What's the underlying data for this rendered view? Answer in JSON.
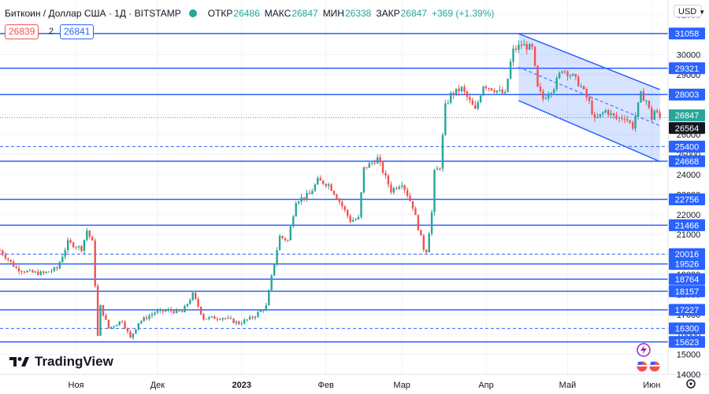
{
  "header": {
    "symbol": "Биткоин / Доллар США · 1Д · BITSTAMP",
    "open_label": "ОТКР",
    "open": "26486",
    "high_label": "МАКС",
    "high": "26847",
    "low_label": "МИН",
    "low": "26338",
    "close_label": "ЗАКР",
    "close": "26847",
    "change": "+369 (+1.39%)"
  },
  "sell_price": "26839",
  "spread": "2",
  "buy_price": "26841",
  "currency": "USD",
  "logo_text": "TradingView",
  "colors": {
    "up": "#26a69a",
    "down": "#ef5350",
    "levels": "#2962ff",
    "channel": "#2962ff"
  },
  "chart_data": {
    "type": "candlestick",
    "ylim": [
      14000,
      32500
    ],
    "y_ticks": [
      14000,
      15000,
      16000,
      17000,
      18000,
      19000,
      20000,
      21000,
      22000,
      23000,
      24000,
      25000,
      26000,
      27000,
      28000,
      29000,
      30000,
      31000,
      32000
    ],
    "x_ticks": [
      {
        "label": "Ноя",
        "date": "2022-11-01"
      },
      {
        "label": "Дек",
        "date": "2022-12-01"
      },
      {
        "label": "2023",
        "date": "2023-01-01"
      },
      {
        "label": "Фев",
        "date": "2023-02-01"
      },
      {
        "label": "Мар",
        "date": "2023-03-01"
      },
      {
        "label": "Апр",
        "date": "2023-04-01"
      },
      {
        "label": "Май",
        "date": "2023-05-01"
      },
      {
        "label": "Июн",
        "date": "2023-06-01"
      }
    ],
    "x_range": [
      "2022-10-04",
      "2023-06-07"
    ],
    "horizontal_levels": [
      {
        "value": 31058,
        "style": "solid"
      },
      {
        "value": 29321,
        "style": "solid"
      },
      {
        "value": 28003,
        "style": "solid"
      },
      {
        "value": 25400,
        "style": "dashed"
      },
      {
        "value": 24668,
        "style": "solid"
      },
      {
        "value": 22756,
        "style": "solid"
      },
      {
        "value": 21466,
        "style": "solid"
      },
      {
        "value": 20016,
        "style": "dashed"
      },
      {
        "value": 19526,
        "style": "solid"
      },
      {
        "value": 18764,
        "style": "solid"
      },
      {
        "value": 18157,
        "style": "solid"
      },
      {
        "value": 17227,
        "style": "solid"
      },
      {
        "value": 16300,
        "style": "dashed"
      },
      {
        "value": 15623,
        "style": "solid"
      }
    ],
    "price_labels": [
      {
        "value": 26847,
        "role": "last"
      },
      {
        "value": 26564,
        "role": "level"
      }
    ],
    "channel": {
      "upper": [
        {
          "date": "2023-04-13",
          "value": 31050
        },
        {
          "date": "2023-06-04",
          "value": 28250
        }
      ],
      "lower": [
        {
          "date": "2023-04-13",
          "value": 27700
        },
        {
          "date": "2023-06-04",
          "value": 24650
        }
      ],
      "mid": [
        {
          "date": "2023-04-13",
          "value": 29375
        },
        {
          "date": "2023-06-04",
          "value": 26450
        }
      ]
    },
    "closes_path": [
      [
        "2022-10-04",
        20200
      ],
      [
        "2022-10-10",
        19300
      ],
      [
        "2022-10-15",
        19100
      ],
      [
        "2022-10-20",
        19050
      ],
      [
        "2022-10-25",
        19300
      ],
      [
        "2022-10-29",
        20600
      ],
      [
        "2022-11-03",
        20300
      ],
      [
        "2022-11-05",
        21200
      ],
      [
        "2022-11-07",
        20600
      ],
      [
        "2022-11-08",
        18500
      ],
      [
        "2022-11-09",
        15900
      ],
      [
        "2022-11-10",
        17400
      ],
      [
        "2022-11-13",
        16300
      ],
      [
        "2022-11-18",
        16700
      ],
      [
        "2022-11-21",
        15800
      ],
      [
        "2022-11-24",
        16600
      ],
      [
        "2022-11-30",
        17100
      ],
      [
        "2022-12-05",
        17200
      ],
      [
        "2022-12-10",
        17100
      ],
      [
        "2022-12-14",
        18000
      ],
      [
        "2022-12-18",
        16800
      ],
      [
        "2022-12-25",
        16850
      ],
      [
        "2022-12-31",
        16550
      ],
      [
        "2023-01-05",
        16850
      ],
      [
        "2023-01-10",
        17400
      ],
      [
        "2023-01-13",
        19600
      ],
      [
        "2023-01-15",
        20900
      ],
      [
        "2023-01-18",
        20700
      ],
      [
        "2023-01-21",
        22700
      ],
      [
        "2023-01-26",
        23000
      ],
      [
        "2023-01-29",
        23700
      ],
      [
        "2023-02-02",
        23500
      ],
      [
        "2023-02-05",
        22900
      ],
      [
        "2023-02-10",
        21700
      ],
      [
        "2023-02-13",
        21800
      ],
      [
        "2023-02-15",
        24300
      ],
      [
        "2023-02-20",
        24800
      ],
      [
        "2023-02-25",
        23200
      ],
      [
        "2023-03-01",
        23600
      ],
      [
        "2023-03-05",
        22400
      ],
      [
        "2023-03-09",
        20300
      ],
      [
        "2023-03-10",
        20200
      ],
      [
        "2023-03-12",
        22100
      ],
      [
        "2023-03-13",
        24100
      ],
      [
        "2023-03-15",
        24400
      ],
      [
        "2023-03-17",
        27400
      ],
      [
        "2023-03-19",
        28000
      ],
      [
        "2023-03-23",
        28300
      ],
      [
        "2023-03-28",
        27200
      ],
      [
        "2023-03-31",
        28500
      ],
      [
        "2023-04-05",
        28200
      ],
      [
        "2023-04-08",
        28000
      ],
      [
        "2023-04-10",
        29600
      ],
      [
        "2023-04-11",
        30200
      ],
      [
        "2023-04-14",
        30500
      ],
      [
        "2023-04-18",
        30300
      ],
      [
        "2023-04-20",
        28300
      ],
      [
        "2023-04-22",
        27800
      ],
      [
        "2023-04-26",
        28400
      ],
      [
        "2023-04-29",
        29300
      ],
      [
        "2023-05-03",
        28900
      ],
      [
        "2023-05-06",
        28400
      ],
      [
        "2023-05-09",
        27600
      ],
      [
        "2023-05-11",
        26700
      ],
      [
        "2023-05-15",
        27200
      ],
      [
        "2023-05-19",
        26800
      ],
      [
        "2023-05-22",
        26900
      ],
      [
        "2023-05-25",
        26400
      ],
      [
        "2023-05-28",
        28000
      ],
      [
        "2023-05-30",
        27700
      ],
      [
        "2023-06-01",
        26800
      ],
      [
        "2023-06-02",
        27200
      ],
      [
        "2023-06-04",
        26847
      ]
    ]
  }
}
